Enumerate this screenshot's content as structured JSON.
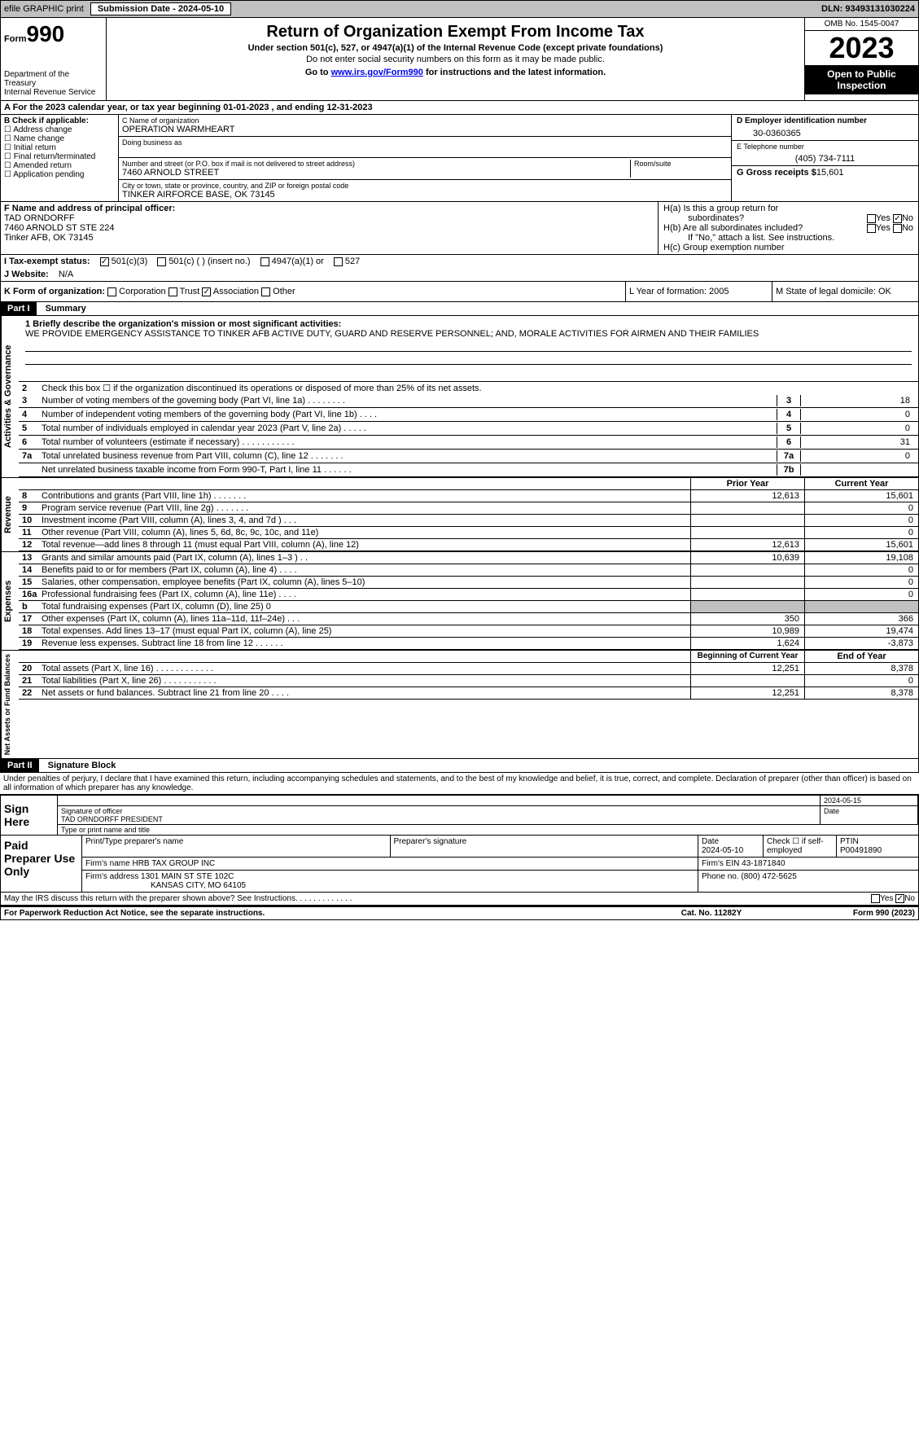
{
  "header_bar": {
    "efile": "efile GRAPHIC print",
    "sub_label": "Submission Date - 2024-05-10",
    "dln": "DLN: 93493131030224"
  },
  "form_header": {
    "form_label": "Form",
    "form_number": "990",
    "dept": "Department of the Treasury\nInternal Revenue Service",
    "title": "Return of Organization Exempt From Income Tax",
    "sub1": "Under section 501(c), 527, or 4947(a)(1) of the Internal Revenue Code (except private foundations)",
    "sub2": "Do not enter social security numbers on this form as it may be made public.",
    "sub3_pre": "Go to ",
    "sub3_link": "www.irs.gov/Form990",
    "sub3_post": " for instructions and the latest information.",
    "omb": "OMB No. 1545-0047",
    "year": "2023",
    "inspect": "Open to Public Inspection"
  },
  "row_a": "A For the 2023 calendar year, or tax year beginning 01-01-2023    , and ending 12-31-2023",
  "col_b": {
    "label": "B Check if applicable:",
    "items": [
      "Address change",
      "Name change",
      "Initial return",
      "Final return/terminated",
      "Amended return",
      "Application pending"
    ]
  },
  "col_c": {
    "name_label": "C Name of organization",
    "name": "OPERATION WARMHEART",
    "dba_label": "Doing business as",
    "street_label": "Number and street (or P.O. box if mail is not delivered to street address)",
    "street": "7460 ARNOLD STREET",
    "room_label": "Room/suite",
    "city_label": "City or town, state or province, country, and ZIP or foreign postal code",
    "city": "TINKER AIRFORCE BASE, OK  73145"
  },
  "col_de": {
    "ein_label": "D Employer identification number",
    "ein": "30-0360365",
    "phone_label": "E Telephone number",
    "phone": "(405) 734-7111",
    "gross_label": "G Gross receipts $",
    "gross": "15,601"
  },
  "col_f": {
    "label": "F  Name and address of principal officer:",
    "name": "TAD ORNDORFF",
    "addr1": "7460 ARNOLD ST STE 224",
    "addr2": "Tinker AFB, OK  73145"
  },
  "col_h": {
    "ha1": "H(a)  Is this a group return for",
    "ha2": "subordinates?",
    "hb1": "H(b)  Are all subordinates included?",
    "hb2": "If \"No,\" attach a list. See instructions.",
    "hc": "H(c)  Group exemption number",
    "yes": "Yes",
    "no": "No"
  },
  "row_i": {
    "label": "I   Tax-exempt status:",
    "o1": "501(c)(3)",
    "o2": "501(c) (  ) (insert no.)",
    "o3": "4947(a)(1) or",
    "o4": "527"
  },
  "row_j": {
    "label": "J   Website:",
    "val": "N/A"
  },
  "row_k": {
    "label": "K Form of organization:",
    "o1": "Corporation",
    "o2": "Trust",
    "o3": "Association",
    "o4": "Other",
    "l": "L Year of formation: 2005",
    "m": "M State of legal domicile: OK"
  },
  "part1": {
    "num": "Part I",
    "title": "Summary"
  },
  "mission": {
    "label": "1  Briefly describe the organization's mission or most significant activities:",
    "text": "WE PROVIDE EMERGENCY ASSISTANCE TO TINKER AFB ACTIVE DUTY, GUARD AND RESERVE PERSONNEL; AND, MORALE ACTIVITIES FOR AIRMEN AND THEIR FAMILIES"
  },
  "line2": "Check this box  ☐  if the organization discontinued its operations or disposed of more than 25% of its net assets.",
  "lines_single": [
    {
      "n": "3",
      "d": "Number of voting members of the governing body (Part VI, line 1a)   .    .    .    .    .    .    .    .",
      "box": "3",
      "v": "18"
    },
    {
      "n": "4",
      "d": "Number of independent voting members of the governing body (Part VI, line 1b)   .    .    .    .",
      "box": "4",
      "v": "0"
    },
    {
      "n": "5",
      "d": "Total number of individuals employed in calendar year 2023 (Part V, line 2a)   .    .    .    .    .",
      "box": "5",
      "v": "0"
    },
    {
      "n": "6",
      "d": "Total number of volunteers (estimate if necessary)    .    .    .    .    .    .    .    .    .    .    .",
      "box": "6",
      "v": "31"
    },
    {
      "n": "7a",
      "d": "Total unrelated business revenue from Part VIII, column (C), line 12   .    .    .    .    .    .    .",
      "box": "7a",
      "v": "0"
    },
    {
      "n": "",
      "d": "Net unrelated business taxable income from Form 990-T, Part I, line 11   .    .    .    .    .    .",
      "box": "7b",
      "v": ""
    }
  ],
  "col_headers": {
    "prior": "Prior Year",
    "current": "Current Year",
    "boy": "Beginning of Current Year",
    "eoy": "End of Year"
  },
  "revenue": [
    {
      "n": "8",
      "d": "Contributions and grants (Part VIII, line 1h)   .    .    .    .    .    .    .",
      "c1": "12,613",
      "c2": "15,601"
    },
    {
      "n": "9",
      "d": "Program service revenue (Part VIII, line 2g)   .    .    .    .    .    .    .",
      "c1": "",
      "c2": "0"
    },
    {
      "n": "10",
      "d": "Investment income (Part VIII, column (A), lines 3, 4, and 7d )   .    .    .",
      "c1": "",
      "c2": "0"
    },
    {
      "n": "11",
      "d": "Other revenue (Part VIII, column (A), lines 5, 6d, 8c, 9c, 10c, and 11e)",
      "c1": "",
      "c2": "0"
    },
    {
      "n": "12",
      "d": "Total revenue—add lines 8 through 11 (must equal Part VIII, column (A), line 12)",
      "c1": "12,613",
      "c2": "15,601"
    }
  ],
  "expenses": [
    {
      "n": "13",
      "d": "Grants and similar amounts paid (Part IX, column (A), lines 1–3 )   .    .",
      "c1": "10,639",
      "c2": "19,108"
    },
    {
      "n": "14",
      "d": "Benefits paid to or for members (Part IX, column (A), line 4)   .    .    .    .",
      "c1": "",
      "c2": "0"
    },
    {
      "n": "15",
      "d": "Salaries, other compensation, employee benefits (Part IX, column (A), lines 5–10)",
      "c1": "",
      "c2": "0"
    },
    {
      "n": "16a",
      "d": "Professional fundraising fees (Part IX, column (A), line 11e)   .    .    .    .",
      "c1": "",
      "c2": "0"
    },
    {
      "n": "b",
      "d": "Total fundraising expenses (Part IX, column (D), line 25) 0",
      "c1": "shaded",
      "c2": "shaded"
    },
    {
      "n": "17",
      "d": "Other expenses (Part IX, column (A), lines 11a–11d, 11f–24e)   .    .    .",
      "c1": "350",
      "c2": "366"
    },
    {
      "n": "18",
      "d": "Total expenses. Add lines 13–17 (must equal Part IX, column (A), line 25)",
      "c1": "10,989",
      "c2": "19,474"
    },
    {
      "n": "19",
      "d": "Revenue less expenses. Subtract line 18 from line 12   .    .    .    .    .    .",
      "c1": "1,624",
      "c2": "-3,873"
    }
  ],
  "netassets": [
    {
      "n": "20",
      "d": "Total assets (Part X, line 16)   .    .    .    .    .    .    .    .    .    .    .    .",
      "c1": "12,251",
      "c2": "8,378"
    },
    {
      "n": "21",
      "d": "Total liabilities (Part X, line 26)   .    .    .    .    .    .    .    .    .    .    .",
      "c1": "",
      "c2": "0"
    },
    {
      "n": "22",
      "d": "Net assets or fund balances. Subtract line 21 from line 20   .    .    .    .",
      "c1": "12,251",
      "c2": "8,378"
    }
  ],
  "part2": {
    "num": "Part II",
    "title": "Signature Block"
  },
  "penalties": "Under penalties of perjury, I declare that I have examined this return, including accompanying schedules and statements, and to the best of my knowledge and belief, it is true, correct, and complete. Declaration of preparer (other than officer) is based on all information of which preparer has any knowledge.",
  "sign": {
    "here": "Sign Here",
    "date": "2024-05-15",
    "sig_label": "Signature of officer",
    "name": "TAD ORNDORFF  PRESIDENT",
    "type_label": "Type or print name and title",
    "date_label": "Date"
  },
  "paid": {
    "label": "Paid Preparer Use Only",
    "pname_label": "Print/Type preparer's name",
    "psig_label": "Preparer's signature",
    "pdate_label": "Date",
    "pdate": "2024-05-10",
    "check_label": "Check ☐ if self-employed",
    "ptin_label": "PTIN",
    "ptin": "P00491890",
    "firm_name_label": "Firm's name",
    "firm_name": "HRB TAX GROUP INC",
    "firm_ein_label": "Firm's EIN",
    "firm_ein": "43-1871840",
    "firm_addr_label": "Firm's address",
    "firm_addr1": "1301 MAIN ST STE 102C",
    "firm_addr2": "KANSAS CITY, MO  64105",
    "phone_label": "Phone no.",
    "phone": "(800) 472-5625"
  },
  "discuss": "May the IRS discuss this return with the preparer shown above? See Instructions.    .    .    .    .    .    .    .    .    .    .    .    .",
  "footer": {
    "left": "For Paperwork Reduction Act Notice, see the separate instructions.",
    "center": "Cat. No. 11282Y",
    "right": "Form 990 (2023)"
  },
  "vtabs": {
    "gov": "Activities & Governance",
    "rev": "Revenue",
    "exp": "Expenses",
    "net": "Net Assets or Fund Balances"
  },
  "colors": {
    "header_bg": "#c0c0c0",
    "black": "#000000",
    "link": "#0000ee",
    "shaded": "#c0c0c0"
  }
}
